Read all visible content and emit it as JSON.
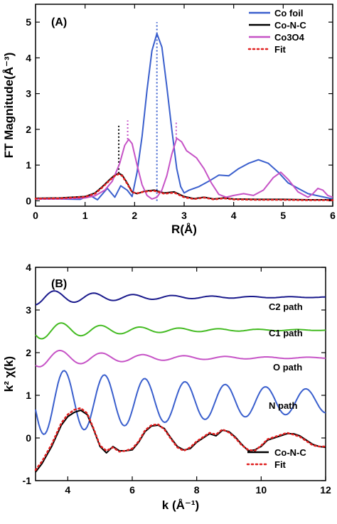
{
  "chart_data": [
    {
      "type": "line",
      "title": "(A)",
      "xlabel": "R(Å)",
      "ylabel": "FT Magnitude(Å⁻³)",
      "xlim": [
        0,
        6
      ],
      "ylim": [
        -0.15,
        5.5
      ],
      "xticks": [
        "0",
        "1",
        "2",
        "3",
        "4",
        "5",
        "6"
      ],
      "yticks": [
        "0",
        "1",
        "2",
        "3",
        "4",
        "5"
      ],
      "legend_position": "top-right",
      "series": [
        {
          "name": "Co foil",
          "color": "#3a5fcd",
          "style": "solid",
          "x": [
            0,
            0.5,
            0.9,
            1.0,
            1.1,
            1.25,
            1.45,
            1.6,
            1.72,
            1.85,
            1.95,
            2.05,
            2.15,
            2.25,
            2.35,
            2.45,
            2.55,
            2.65,
            2.75,
            2.85,
            2.93,
            3.0,
            3.1,
            3.3,
            3.5,
            3.7,
            3.9,
            4.1,
            4.3,
            4.5,
            4.7,
            4.9,
            5.1,
            5.3,
            5.5,
            5.7,
            5.9,
            6.0
          ],
          "y": [
            0.05,
            0.05,
            0.04,
            0.1,
            0.15,
            0.03,
            0.35,
            0.1,
            0.42,
            0.3,
            0.12,
            0.8,
            1.8,
            3.1,
            4.2,
            4.68,
            4.3,
            3.2,
            2.0,
            0.9,
            0.4,
            0.22,
            0.3,
            0.4,
            0.55,
            0.72,
            0.7,
            0.9,
            1.05,
            1.15,
            1.05,
            0.8,
            0.5,
            0.35,
            0.2,
            0.14,
            0.08,
            0.05
          ]
        },
        {
          "name": "Co-N-C",
          "color": "#000000",
          "style": "solid",
          "x": [
            0,
            0.5,
            1.0,
            1.2,
            1.35,
            1.5,
            1.6,
            1.68,
            1.75,
            1.85,
            1.95,
            2.05,
            2.2,
            2.4,
            2.6,
            2.8,
            3.0,
            3.2,
            3.4,
            3.6,
            3.8,
            4.0,
            4.5,
            5.0,
            5.5,
            6.0
          ],
          "y": [
            0.07,
            0.08,
            0.12,
            0.22,
            0.4,
            0.6,
            0.72,
            0.77,
            0.72,
            0.5,
            0.25,
            0.2,
            0.27,
            0.3,
            0.22,
            0.25,
            0.12,
            0.06,
            0.1,
            0.05,
            0.08,
            0.05,
            0.04,
            0.04,
            0.03,
            0.03
          ]
        },
        {
          "name": "Co3O4",
          "color": "#c653c6",
          "style": "solid",
          "x": [
            0,
            0.5,
            1.0,
            1.2,
            1.4,
            1.55,
            1.7,
            1.8,
            1.88,
            1.95,
            2.05,
            2.15,
            2.25,
            2.35,
            2.45,
            2.55,
            2.65,
            2.75,
            2.85,
            2.95,
            3.05,
            3.15,
            3.25,
            3.4,
            3.55,
            3.7,
            3.85,
            4.0,
            4.2,
            4.4,
            4.6,
            4.8,
            4.95,
            5.1,
            5.3,
            5.5,
            5.6,
            5.7,
            5.8,
            5.9,
            6.0
          ],
          "y": [
            0.05,
            0.05,
            0.08,
            0.14,
            0.3,
            0.55,
            1.05,
            1.55,
            1.72,
            1.6,
            1.0,
            0.45,
            0.15,
            0.05,
            0.1,
            0.3,
            0.7,
            1.3,
            1.75,
            1.65,
            1.4,
            1.3,
            1.2,
            0.9,
            0.5,
            0.18,
            0.1,
            0.15,
            0.2,
            0.15,
            0.3,
            0.65,
            0.8,
            0.6,
            0.25,
            0.1,
            0.2,
            0.35,
            0.3,
            0.15,
            0.1
          ]
        },
        {
          "name": "Fit",
          "color": "#e02020",
          "style": "dotted",
          "x": [
            0,
            0.5,
            1.0,
            1.2,
            1.35,
            1.5,
            1.6,
            1.68,
            1.75,
            1.85,
            1.95,
            2.05,
            2.2,
            2.4,
            2.6,
            2.8,
            3.0,
            3.2,
            3.4,
            3.6,
            3.8,
            4.0,
            4.5,
            5.0,
            5.5,
            6.0
          ],
          "y": [
            0.06,
            0.07,
            0.11,
            0.2,
            0.38,
            0.58,
            0.7,
            0.75,
            0.7,
            0.48,
            0.24,
            0.21,
            0.26,
            0.28,
            0.2,
            0.23,
            0.1,
            0.05,
            0.09,
            0.04,
            0.07,
            0.04,
            0.03,
            0.03,
            0.02,
            0.02
          ]
        }
      ],
      "vlines": [
        {
          "x": 1.68,
          "y": [
            0.77,
            2.1
          ],
          "color": "#000000"
        },
        {
          "x": 1.86,
          "y": [
            1.72,
            2.25
          ],
          "color": "#c653c6"
        },
        {
          "x": 2.45,
          "y": [
            0.0,
            5.0
          ],
          "color": "#3a5fcd"
        },
        {
          "x": 2.84,
          "y": [
            1.75,
            2.25
          ],
          "color": "#c653c6"
        }
      ]
    },
    {
      "type": "line",
      "title": "(B)",
      "xlabel": "k (Å⁻¹)",
      "ylabel": "k² χ(k)",
      "xlim": [
        3,
        12
      ],
      "ylim": [
        -1,
        4
      ],
      "xticks": [
        "4",
        "6",
        "8",
        "10",
        "12"
      ],
      "yticks": [
        "-1",
        "0",
        "1",
        "2",
        "3",
        "4"
      ],
      "legend_position": "bottom-right",
      "annotations": [
        "C2 path",
        "C1 path",
        "O path",
        "N path"
      ],
      "series": [
        {
          "name": "",
          "color": "#1a1a8c",
          "style": "solid",
          "offset": 3.3,
          "amp": 0.18,
          "freq": 2.05,
          "phase": -1.5,
          "decay": 0.35,
          "k0": 3
        },
        {
          "name": "",
          "color": "#44bb22",
          "style": "solid",
          "offset": 2.53,
          "amp": 0.22,
          "freq": 2.05,
          "phase": -2.6,
          "decay": 0.35,
          "k0": 3
        },
        {
          "name": "",
          "color": "#c653c6",
          "style": "solid",
          "offset": 1.88,
          "amp": 0.22,
          "freq": 1.95,
          "phase": -2.2,
          "decay": 0.33,
          "k0": 3
        },
        {
          "name": "",
          "color": "#3a5fcd",
          "style": "solid",
          "offset": 0.86,
          "amp": 0.8,
          "freq": 2.0,
          "phase": -2.9,
          "decay": 0.12,
          "k0": 3
        },
        {
          "name": "Co-N-C",
          "color": "#000000",
          "style": "solid",
          "x": [
            3.0,
            3.2,
            3.5,
            3.8,
            4.0,
            4.2,
            4.4,
            4.6,
            4.8,
            5.0,
            5.2,
            5.4,
            5.6,
            5.8,
            6.0,
            6.2,
            6.4,
            6.6,
            6.8,
            7.0,
            7.2,
            7.4,
            7.6,
            7.8,
            8.0,
            8.2,
            8.4,
            8.6,
            8.8,
            9.0,
            9.2,
            9.4,
            9.6,
            9.8,
            10.0,
            10.2,
            10.4,
            10.6,
            10.8,
            11.0,
            11.2,
            11.4,
            11.6,
            11.8,
            12.0
          ],
          "y": [
            -0.8,
            -0.6,
            -0.2,
            0.3,
            0.5,
            0.6,
            0.65,
            0.55,
            0.2,
            -0.2,
            -0.35,
            -0.2,
            -0.3,
            -0.3,
            -0.28,
            -0.1,
            0.15,
            0.28,
            0.3,
            0.22,
            0.0,
            -0.2,
            -0.28,
            -0.25,
            -0.1,
            0.0,
            0.1,
            0.05,
            0.18,
            0.15,
            0.02,
            -0.15,
            -0.3,
            -0.28,
            -0.2,
            -0.05,
            0.0,
            0.05,
            0.1,
            0.1,
            0.05,
            -0.05,
            -0.15,
            -0.2,
            -0.22
          ]
        },
        {
          "name": "Fit",
          "color": "#e02020",
          "style": "dotted",
          "x": [
            3.0,
            3.2,
            3.5,
            3.8,
            4.0,
            4.2,
            4.4,
            4.6,
            4.8,
            5.0,
            5.2,
            5.4,
            5.6,
            5.8,
            6.0,
            6.2,
            6.4,
            6.6,
            6.8,
            7.0,
            7.2,
            7.4,
            7.6,
            7.8,
            8.0,
            8.2,
            8.4,
            8.6,
            8.8,
            9.0,
            9.2,
            9.4,
            9.6,
            9.8,
            10.0,
            10.2,
            10.4,
            10.6,
            10.8,
            11.0,
            11.2,
            11.4,
            11.6,
            11.8,
            12.0
          ],
          "y": [
            -0.75,
            -0.55,
            -0.15,
            0.35,
            0.55,
            0.66,
            0.7,
            0.58,
            0.22,
            -0.18,
            -0.3,
            -0.22,
            -0.32,
            -0.3,
            -0.25,
            -0.08,
            0.18,
            0.3,
            0.32,
            0.2,
            -0.02,
            -0.22,
            -0.3,
            -0.22,
            -0.08,
            0.02,
            0.12,
            0.08,
            0.2,
            0.13,
            0.0,
            -0.17,
            -0.28,
            -0.3,
            -0.18,
            -0.03,
            0.02,
            0.07,
            0.12,
            0.08,
            0.03,
            -0.07,
            -0.17,
            -0.2,
            -0.2
          ]
        }
      ]
    }
  ]
}
